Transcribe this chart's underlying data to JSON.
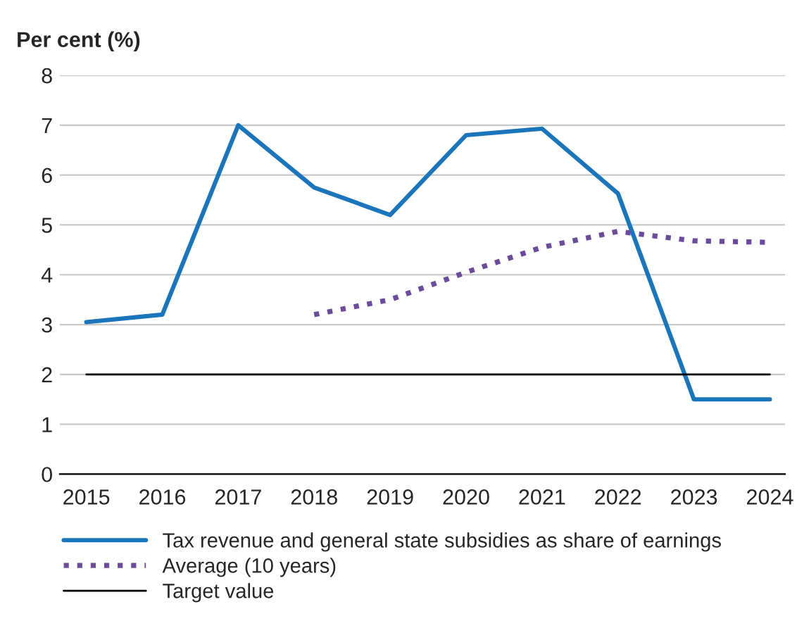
{
  "chart_data": {
    "type": "line",
    "ylabel": "Per cent (%)",
    "categories": [
      "2015",
      "2016",
      "2017",
      "2018",
      "2019",
      "2020",
      "2021",
      "2022",
      "2023",
      "2024"
    ],
    "series": [
      {
        "name": "Tax revenue and general state subsidies as share of earnings",
        "color": "#1b75bb",
        "line_style": "solid",
        "values": [
          3.05,
          3.2,
          7.0,
          5.75,
          5.2,
          6.8,
          6.93,
          5.63,
          1.5,
          1.5
        ]
      },
      {
        "name": "Average (10 years)",
        "color": "#6b4c9a",
        "line_style": "dotted",
        "values": [
          null,
          null,
          null,
          3.2,
          3.5,
          4.05,
          4.55,
          4.87,
          4.68,
          4.65
        ]
      },
      {
        "name": "Target value",
        "color": "#000000",
        "line_style": "solid",
        "values": [
          2,
          2,
          2,
          2,
          2,
          2,
          2,
          2,
          2,
          2
        ]
      }
    ],
    "ylim": [
      0,
      8
    ],
    "yticks": [
      0,
      1,
      2,
      3,
      4,
      5,
      6,
      7,
      8
    ],
    "grid": "y",
    "legend": "bottom"
  }
}
